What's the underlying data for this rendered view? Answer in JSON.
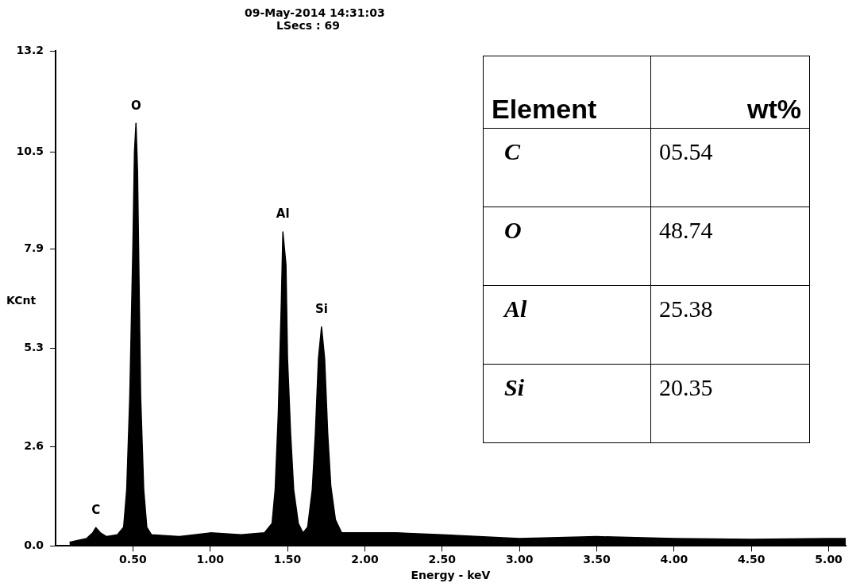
{
  "chart_data": [
    {
      "type": "area",
      "title": "09-May-2014 14:31:03",
      "subtitle": "LSecs : 69",
      "xlabel": "Energy - keV",
      "ylabel": "KCnt",
      "x": [
        0.09,
        0.2,
        0.24,
        0.26,
        0.29,
        0.33,
        0.4,
        0.44,
        0.46,
        0.48,
        0.5,
        0.51,
        0.52,
        0.53,
        0.54,
        0.55,
        0.57,
        0.59,
        0.62,
        0.8,
        1.0,
        1.2,
        1.35,
        1.4,
        1.42,
        1.44,
        1.46,
        1.47,
        1.49,
        1.5,
        1.52,
        1.54,
        1.57,
        1.6,
        1.63,
        1.66,
        1.68,
        1.7,
        1.72,
        1.74,
        1.76,
        1.78,
        1.81,
        1.85,
        2.0,
        2.2,
        2.5,
        3.0,
        3.5,
        4.0,
        4.5,
        5.0,
        5.11
      ],
      "series": [
        {
          "color": "#000000",
          "values": [
            0.1,
            0.2,
            0.35,
            0.49,
            0.35,
            0.25,
            0.3,
            0.5,
            1.5,
            4,
            8,
            10.5,
            11.27,
            10,
            7,
            4,
            1.5,
            0.5,
            0.3,
            0.25,
            0.35,
            0.3,
            0.35,
            0.6,
            1.5,
            3.5,
            6.5,
            8.37,
            7.5,
            5,
            3,
            1.5,
            0.6,
            0.35,
            0.5,
            1.5,
            3,
            5,
            5.84,
            5,
            3,
            1.6,
            0.7,
            0.35,
            0.35,
            0.35,
            0.3,
            0.2,
            0.25,
            0.2,
            0.18,
            0.2,
            0.2
          ]
        }
      ],
      "xlim": [
        0,
        5.11
      ],
      "xticks": [
        {
          "value": 0.5,
          "label": "0.50"
        },
        {
          "value": 1,
          "label": "1.00"
        },
        {
          "value": 1.5,
          "label": "1.50"
        },
        {
          "value": 2,
          "label": "2.00"
        },
        {
          "value": 2.5,
          "label": "2.50"
        },
        {
          "value": 3,
          "label": "3.00"
        },
        {
          "value": 3.5,
          "label": "3.50"
        },
        {
          "value": 4,
          "label": "4.00"
        },
        {
          "value": 4.5,
          "label": "4.50"
        },
        {
          "value": 5,
          "label": "5.00"
        }
      ],
      "ylim": [
        0,
        13.2
      ],
      "yticks": [
        {
          "value": 0,
          "label": "0.0"
        },
        {
          "value": 2.64,
          "label": "2.6"
        },
        {
          "value": 5.28,
          "label": "5.3"
        },
        {
          "value": 7.92,
          "label": "7.9"
        },
        10.5,
        {
          "value": 13.2,
          "label": "13.2"
        }
      ],
      "annotations": [
        {
          "text": "C",
          "x": 0.26,
          "y": 0.49
        },
        {
          "text": "O",
          "x": 0.52,
          "y": 11.27
        },
        {
          "text": "Al",
          "x": 1.47,
          "y": 8.37
        },
        {
          "text": "Si",
          "x": 1.72,
          "y": 5.84
        }
      ]
    },
    {
      "type": "other",
      "xlabel": "Element",
      "ylabel": "wt%",
      "categories": [
        "C",
        "O",
        "Al",
        "Si"
      ],
      "value_labels": [
        "05.54",
        "48.74",
        "25.38",
        "20.35"
      ]
    }
  ]
}
